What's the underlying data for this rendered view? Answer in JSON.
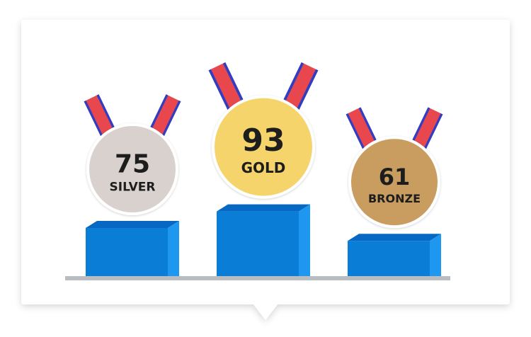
{
  "chart_data": {
    "type": "bar",
    "categories": [
      "SILVER",
      "GOLD",
      "BRONZE"
    ],
    "values": [
      75,
      93,
      61
    ],
    "title": "",
    "xlabel": "",
    "ylabel": "",
    "ylim": [
      0,
      100
    ],
    "grid": false,
    "legend": "none"
  },
  "colors": {
    "bar_front": "#0a7dd6",
    "bar_top": "#0668c2",
    "bar_side": "#1e97f0",
    "baseline": "#b9bcc0",
    "ribbon_red": "#e8474e",
    "ribbon_blue": "#2e3fc4",
    "silver": "#d9d1ce",
    "gold": "#f5d46b",
    "bronze": "#c99d60"
  }
}
